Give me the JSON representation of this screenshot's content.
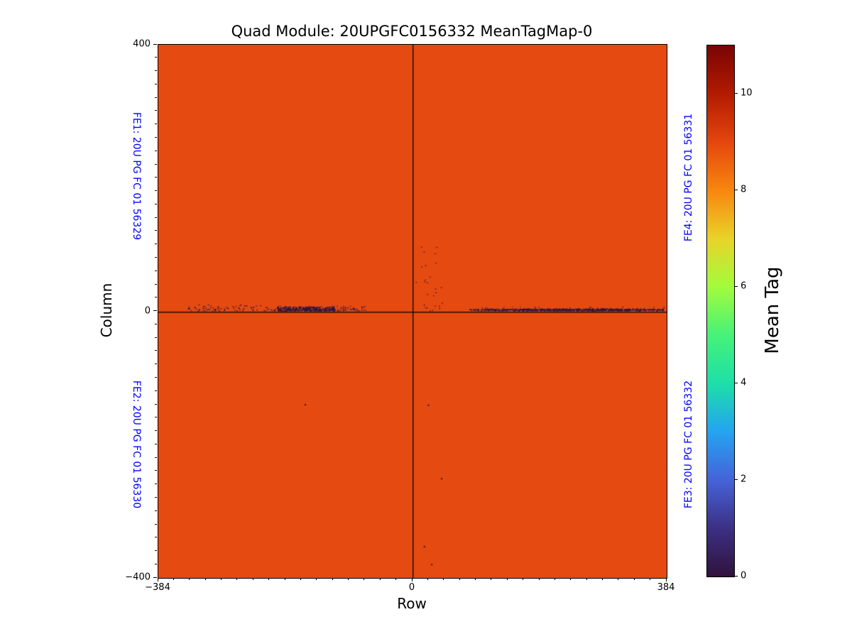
{
  "figure": {
    "title": "Quad Module: 20UPGFC0156332 MeanTagMap-0",
    "background": "#ffffff"
  },
  "fe_labels": {
    "color": "#0000ff",
    "fe1": {
      "text": "FE1: 20U PG FC 01 56329",
      "side": "left-top"
    },
    "fe2": {
      "text": "FE2: 20U PG FC 01 56330",
      "side": "left-bottom"
    },
    "fe4": {
      "text": "FE4: 20U PG FC 01 56331",
      "side": "right-top"
    },
    "fe3": {
      "text": "FE3: 20U PG FC 01 56332",
      "side": "right-bottom"
    }
  },
  "chart_data": {
    "type": "heatmap",
    "title": "Quad Module: 20UPGFC0156332 MeanTagMap-0",
    "xlabel": "Row",
    "ylabel": "Column",
    "xlim": [
      -384,
      384
    ],
    "ylim": [
      -400,
      400
    ],
    "x_ticks": [
      {
        "value": -384,
        "label": "−384"
      },
      {
        "value": 0,
        "label": "0"
      },
      {
        "value": 384,
        "label": "384"
      }
    ],
    "y_ticks": [
      {
        "value": 400,
        "label": "400"
      },
      {
        "value": 0,
        "label": "0"
      },
      {
        "value": -400,
        "label": "−400"
      }
    ],
    "x_minor_step": 24,
    "y_minor_step": 20,
    "base_value": 9,
    "base_color": "#e54a10",
    "crosshair": {
      "x": 0,
      "y": 0,
      "color": "#140a00"
    },
    "colorbar": {
      "label": "Mean Tag",
      "min": 0,
      "max": 11,
      "ticks": [
        10,
        8,
        6,
        4,
        2,
        0
      ],
      "colormap": "turbo",
      "stops": [
        {
          "value": 11,
          "color": "#7a0403"
        },
        {
          "value": 10,
          "color": "#b21b01"
        },
        {
          "value": 9,
          "color": "#e4460e"
        },
        {
          "value": 8,
          "color": "#f8860f"
        },
        {
          "value": 7,
          "color": "#e9d329"
        },
        {
          "value": 6,
          "color": "#a2fc3c"
        },
        {
          "value": 5,
          "color": "#46f279"
        },
        {
          "value": 4,
          "color": "#1ddfa8"
        },
        {
          "value": 3,
          "color": "#24a4f1"
        },
        {
          "value": 2,
          "color": "#4563d8"
        },
        {
          "value": 1,
          "color": "#3c3085"
        },
        {
          "value": 0,
          "color": "#30123b"
        }
      ]
    },
    "anomaly_value": 0,
    "anomaly_color": "#291744",
    "anomaly_clusters": [
      {
        "x_range": [
          -340,
          -200
        ],
        "y_range": [
          0,
          9
        ],
        "count": 80,
        "dot": 1.4,
        "bias": 1.6
      },
      {
        "x_range": [
          -205,
          -118
        ],
        "y_range": [
          0,
          6
        ],
        "count": 330,
        "dot": 1.6,
        "bias": 1.8
      },
      {
        "x_range": [
          -125,
          -70
        ],
        "y_range": [
          0,
          7
        ],
        "count": 55,
        "dot": 1.3,
        "bias": 1.8
      },
      {
        "x_range": [
          85,
          380
        ],
        "y_range": [
          0,
          2.5
        ],
        "count": 480,
        "dot": 1.4,
        "bias": 1.0
      },
      {
        "x_range": [
          160,
          345
        ],
        "y_range": [
          0,
          3
        ],
        "count": 320,
        "dot": 1.5,
        "bias": 1.4
      },
      {
        "x_range": [
          90,
          380
        ],
        "y_range": [
          2,
          6
        ],
        "count": 45,
        "dot": 1.1,
        "bias": 1.0
      },
      {
        "x_range": [
          3,
          45
        ],
        "y_range": [
          0,
          100
        ],
        "count": 26,
        "dot": 1.4,
        "bias": 2.2
      }
    ],
    "stray_points": [
      {
        "x": -338,
        "y": 5
      },
      {
        "x": -323,
        "y": 3
      },
      {
        "x": 43,
        "y": -250
      },
      {
        "x": 23,
        "y": -140
      },
      {
        "x": 17,
        "y": -352
      },
      {
        "x": 28,
        "y": -379
      },
      {
        "x": -163,
        "y": -139
      }
    ]
  }
}
